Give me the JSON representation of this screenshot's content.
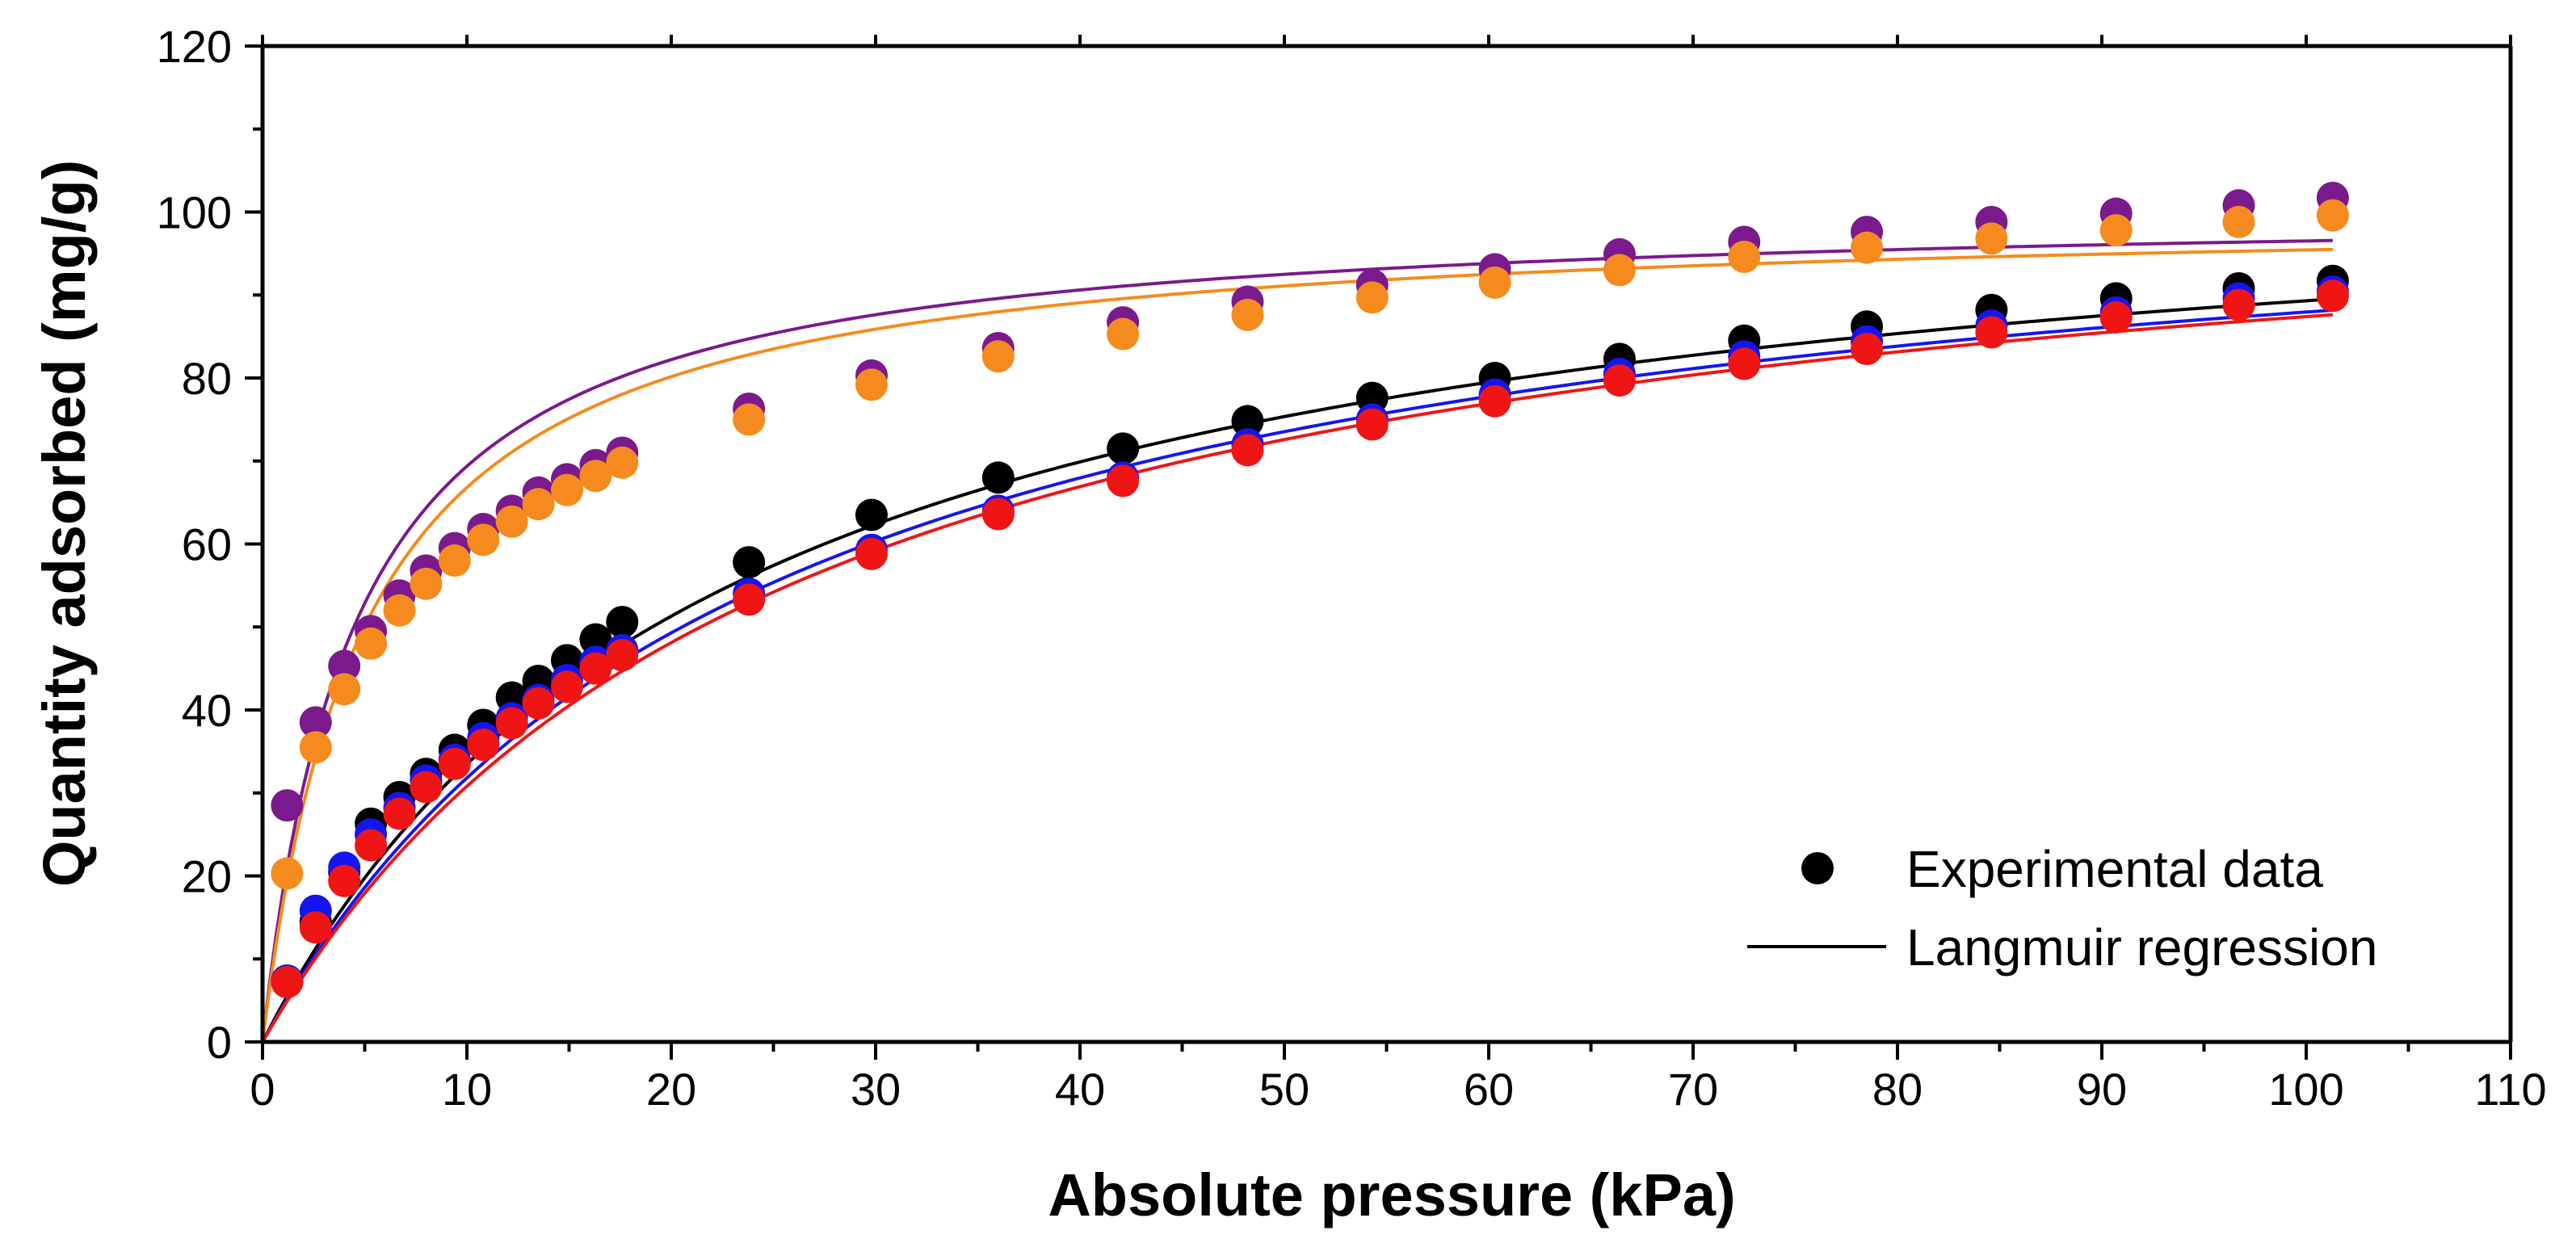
{
  "chart_data": {
    "type": "scatter",
    "title": "",
    "xlabel": "Absolute pressure (kPa)",
    "ylabel": "Quantity adsorbed (mg/g)",
    "xlim": [
      0,
      110
    ],
    "ylim": [
      0,
      120
    ],
    "xticks": [
      0,
      10,
      20,
      30,
      40,
      50,
      60,
      70,
      80,
      90,
      100,
      110
    ],
    "yticks": [
      0,
      20,
      40,
      60,
      80,
      100,
      120
    ],
    "grid": false,
    "legend": {
      "placement": "bottom-right",
      "entries": [
        {
          "label": "Experimental data",
          "marker": "circle",
          "color": "#000000"
        },
        {
          "label": "Langmuir regression",
          "marker": "line",
          "color": "#000000"
        }
      ]
    },
    "series": [
      {
        "name": "purple",
        "color": "#7B1A8C",
        "fit": {
          "qm": 100.9,
          "b": 0.22,
          "xmax": 101.3
        },
        "x": [
          1.2,
          2.6,
          4.0,
          5.3,
          6.7,
          8.0,
          9.4,
          10.8,
          12.2,
          13.5,
          14.9,
          16.3,
          17.6,
          23.8,
          29.8,
          36.0,
          42.1,
          48.2,
          54.3,
          60.3,
          66.4,
          72.5,
          78.5,
          84.6,
          90.7,
          96.7,
          101.3
        ],
        "y": [
          28.5,
          38.5,
          45.3,
          49.5,
          53.8,
          56.8,
          59.5,
          61.8,
          64.0,
          66.2,
          67.8,
          69.5,
          71.0,
          76.3,
          80.3,
          83.6,
          86.7,
          89.2,
          91.2,
          93.1,
          94.9,
          96.4,
          97.6,
          98.8,
          99.8,
          100.8,
          101.7
        ]
      },
      {
        "name": "orange",
        "color": "#F58B1F",
        "fit": {
          "qm": 100.2,
          "b": 0.2,
          "xmax": 101.3
        },
        "x": [
          1.2,
          2.6,
          4.0,
          5.3,
          6.7,
          8.0,
          9.4,
          10.8,
          12.2,
          13.5,
          14.9,
          16.3,
          17.6,
          23.8,
          29.8,
          36.0,
          42.1,
          48.2,
          54.3,
          60.3,
          66.4,
          72.5,
          78.5,
          84.6,
          90.7,
          96.7,
          101.3
        ],
        "y": [
          20.3,
          35.5,
          42.5,
          48.0,
          52.0,
          55.2,
          58.0,
          60.5,
          62.7,
          64.8,
          66.5,
          68.2,
          69.8,
          75.0,
          79.2,
          82.6,
          85.3,
          87.6,
          89.7,
          91.5,
          93.0,
          94.6,
          95.7,
          96.8,
          97.8,
          98.8,
          99.6
        ]
      },
      {
        "name": "black",
        "color": "#000000",
        "fit": {
          "qm": 109.6,
          "b": 0.044,
          "xmax": 101.3
        },
        "x": [
          1.2,
          2.6,
          4.0,
          5.3,
          6.7,
          8.0,
          9.4,
          10.8,
          12.2,
          13.5,
          14.9,
          16.3,
          17.6,
          23.8,
          29.8,
          36.0,
          42.1,
          48.2,
          54.3,
          60.3,
          66.4,
          72.5,
          78.5,
          84.6,
          90.7,
          96.7,
          101.3
        ],
        "y": [
          7.3,
          14.5,
          20.5,
          26.3,
          29.5,
          32.3,
          35.2,
          38.2,
          41.5,
          43.5,
          46.0,
          48.5,
          50.6,
          57.8,
          63.5,
          68.0,
          71.5,
          74.8,
          77.6,
          80.0,
          82.3,
          84.5,
          86.2,
          88.2,
          89.6,
          90.8,
          91.7
        ]
      },
      {
        "name": "blue",
        "color": "#1515F0",
        "fit": {
          "qm": 109.4,
          "b": 0.041,
          "xmax": 101.3
        },
        "x": [
          1.2,
          2.6,
          4.0,
          5.3,
          6.7,
          8.0,
          9.4,
          10.8,
          12.2,
          13.5,
          14.9,
          16.3,
          17.6,
          23.8,
          29.8,
          36.0,
          42.1,
          48.2,
          54.3,
          60.3,
          66.4,
          72.5,
          78.5,
          84.6,
          90.7,
          96.7,
          101.3
        ],
        "y": [
          7.4,
          15.8,
          21.0,
          25.0,
          28.2,
          31.5,
          34.0,
          36.6,
          39.0,
          41.2,
          43.6,
          45.8,
          47.2,
          54.0,
          59.3,
          64.0,
          68.0,
          72.0,
          75.0,
          78.0,
          80.5,
          82.6,
          84.4,
          86.3,
          87.9,
          89.6,
          90.4
        ]
      },
      {
        "name": "red",
        "color": "#F01515",
        "fit": {
          "qm": 109.8,
          "b": 0.039,
          "xmax": 101.3
        },
        "x": [
          1.2,
          2.6,
          4.0,
          5.3,
          6.7,
          8.0,
          9.4,
          10.8,
          12.2,
          13.5,
          14.9,
          16.3,
          17.6,
          23.8,
          29.8,
          36.0,
          42.1,
          48.2,
          54.3,
          60.3,
          66.4,
          72.5,
          78.5,
          84.6,
          90.7,
          96.7,
          101.3
        ],
        "y": [
          7.2,
          13.8,
          19.4,
          23.7,
          27.5,
          30.7,
          33.5,
          35.8,
          38.4,
          40.8,
          42.8,
          45.0,
          46.6,
          53.3,
          58.8,
          63.6,
          67.6,
          71.3,
          74.4,
          77.2,
          79.7,
          81.7,
          83.5,
          85.5,
          87.3,
          88.8,
          89.9
        ]
      }
    ]
  }
}
